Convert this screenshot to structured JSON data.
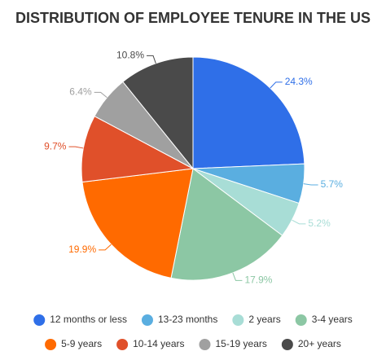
{
  "chart_data": {
    "type": "pie",
    "title": "DISTRIBUTION OF EMPLOYEE TENURE IN THE US",
    "categories": [
      "12 months or less",
      "13-23 months",
      "2 years",
      "3-4 years",
      "5-9 years",
      "10-14 years",
      "15-19 years",
      "20+ years"
    ],
    "values": [
      24.3,
      5.7,
      5.2,
      17.9,
      19.9,
      9.7,
      6.4,
      10.8
    ],
    "value_labels": [
      "24.3%",
      "5.7%",
      "5.2%",
      "17.9%",
      "19.9%",
      "9.7%",
      "6.4%",
      "10.8%"
    ],
    "colors": [
      "#2f6fe8",
      "#5aaee0",
      "#a8ddd6",
      "#8cc7a4",
      "#ff6a00",
      "#e0502a",
      "#a0a0a0",
      "#4a4a4a"
    ]
  }
}
